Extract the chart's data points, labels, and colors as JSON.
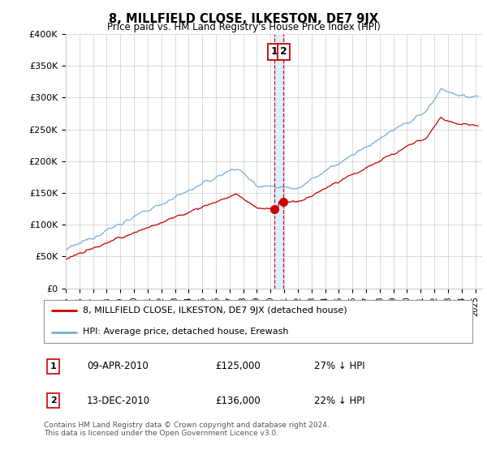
{
  "title": "8, MILLFIELD CLOSE, ILKESTON, DE7 9JX",
  "subtitle": "Price paid vs. HM Land Registry's House Price Index (HPI)",
  "ylabel_ticks": [
    "£0",
    "£50K",
    "£100K",
    "£150K",
    "£200K",
    "£250K",
    "£300K",
    "£350K",
    "£400K"
  ],
  "ytick_values": [
    0,
    50000,
    100000,
    150000,
    200000,
    250000,
    300000,
    350000,
    400000
  ],
  "ylim": [
    0,
    400000
  ],
  "xlim_start": 1995.0,
  "xlim_end": 2025.5,
  "sale1_x": 2010.27,
  "sale1_y": 125000,
  "sale2_x": 2010.95,
  "sale2_y": 136000,
  "sale1_label": "1",
  "sale2_label": "2",
  "sale1_date": "09-APR-2010",
  "sale1_price": "£125,000",
  "sale1_pct": "27% ↓ HPI",
  "sale2_date": "13-DEC-2010",
  "sale2_price": "£136,000",
  "sale2_pct": "22% ↓ HPI",
  "line_red_label": "8, MILLFIELD CLOSE, ILKESTON, DE7 9JX (detached house)",
  "line_blue_label": "HPI: Average price, detached house, Erewash",
  "footer": "Contains HM Land Registry data © Crown copyright and database right 2024.\nThis data is licensed under the Open Government Licence v3.0.",
  "bg_color": "#ffffff",
  "grid_color": "#cccccc",
  "red_color": "#cc0000",
  "blue_color": "#7aaed6",
  "shade_color": "#ddeeff"
}
